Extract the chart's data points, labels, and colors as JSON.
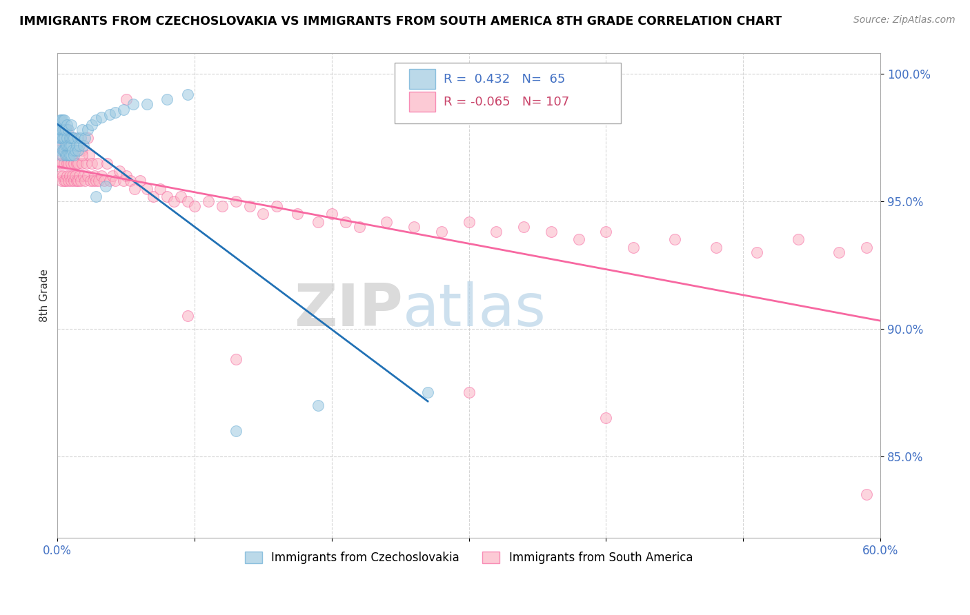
{
  "title": "IMMIGRANTS FROM CZECHOSLOVAKIA VS IMMIGRANTS FROM SOUTH AMERICA 8TH GRADE CORRELATION CHART",
  "source_text": "Source: ZipAtlas.com",
  "ylabel": "8th Grade",
  "xlim": [
    0.0,
    0.6
  ],
  "ylim": [
    0.818,
    1.008
  ],
  "y_ticks": [
    0.85,
    0.9,
    0.95,
    1.0
  ],
  "y_tick_labels": [
    "85.0%",
    "90.0%",
    "95.0%",
    "100.0%"
  ],
  "r_blue": 0.432,
  "n_blue": 65,
  "r_pink": -0.065,
  "n_pink": 107,
  "blue_color": "#9ecae1",
  "pink_color": "#fbb4c4",
  "blue_edge_color": "#6baed6",
  "pink_edge_color": "#f768a1",
  "blue_line_color": "#2171b5",
  "pink_line_color": "#f768a1",
  "watermark_zip": "ZIP",
  "watermark_atlas": "atlas",
  "legend_label_blue": "Immigrants from Czechoslovakia",
  "legend_label_pink": "Immigrants from South America",
  "blue_scatter_x": [
    0.001,
    0.001,
    0.002,
    0.002,
    0.002,
    0.002,
    0.003,
    0.003,
    0.003,
    0.003,
    0.003,
    0.004,
    0.004,
    0.004,
    0.004,
    0.005,
    0.005,
    0.005,
    0.005,
    0.006,
    0.006,
    0.006,
    0.007,
    0.007,
    0.007,
    0.007,
    0.008,
    0.008,
    0.008,
    0.009,
    0.009,
    0.009,
    0.01,
    0.01,
    0.01,
    0.01,
    0.011,
    0.011,
    0.012,
    0.012,
    0.013,
    0.014,
    0.015,
    0.015,
    0.016,
    0.017,
    0.018,
    0.019,
    0.02,
    0.022,
    0.025,
    0.028,
    0.032,
    0.038,
    0.042,
    0.048,
    0.055,
    0.065,
    0.08,
    0.095,
    0.028,
    0.035,
    0.13,
    0.19,
    0.27
  ],
  "blue_scatter_y": [
    0.975,
    0.98,
    0.97,
    0.975,
    0.978,
    0.982,
    0.968,
    0.972,
    0.975,
    0.978,
    0.982,
    0.97,
    0.975,
    0.978,
    0.982,
    0.97,
    0.975,
    0.978,
    0.982,
    0.968,
    0.972,
    0.978,
    0.968,
    0.972,
    0.975,
    0.98,
    0.968,
    0.972,
    0.978,
    0.968,
    0.972,
    0.975,
    0.968,
    0.972,
    0.975,
    0.98,
    0.97,
    0.975,
    0.968,
    0.975,
    0.97,
    0.972,
    0.97,
    0.975,
    0.972,
    0.975,
    0.978,
    0.972,
    0.975,
    0.978,
    0.98,
    0.982,
    0.983,
    0.984,
    0.985,
    0.986,
    0.988,
    0.988,
    0.99,
    0.992,
    0.952,
    0.956,
    0.86,
    0.87,
    0.875
  ],
  "pink_scatter_x": [
    0.001,
    0.001,
    0.002,
    0.002,
    0.003,
    0.003,
    0.003,
    0.004,
    0.004,
    0.005,
    0.005,
    0.005,
    0.006,
    0.006,
    0.007,
    0.007,
    0.008,
    0.008,
    0.009,
    0.009,
    0.01,
    0.01,
    0.011,
    0.011,
    0.012,
    0.012,
    0.013,
    0.014,
    0.014,
    0.015,
    0.015,
    0.016,
    0.017,
    0.018,
    0.018,
    0.019,
    0.02,
    0.021,
    0.022,
    0.023,
    0.024,
    0.025,
    0.026,
    0.027,
    0.028,
    0.029,
    0.03,
    0.032,
    0.034,
    0.036,
    0.038,
    0.04,
    0.042,
    0.045,
    0.048,
    0.05,
    0.053,
    0.056,
    0.06,
    0.065,
    0.07,
    0.075,
    0.08,
    0.085,
    0.09,
    0.095,
    0.1,
    0.11,
    0.12,
    0.13,
    0.14,
    0.15,
    0.16,
    0.175,
    0.19,
    0.2,
    0.21,
    0.22,
    0.24,
    0.26,
    0.28,
    0.3,
    0.32,
    0.34,
    0.36,
    0.38,
    0.4,
    0.42,
    0.45,
    0.48,
    0.51,
    0.54,
    0.57,
    0.59,
    0.005,
    0.007,
    0.009,
    0.012,
    0.015,
    0.018,
    0.022,
    0.05,
    0.095,
    0.3,
    0.4,
    0.59,
    0.13
  ],
  "pink_scatter_y": [
    0.965,
    0.972,
    0.96,
    0.972,
    0.958,
    0.965,
    0.975,
    0.96,
    0.968,
    0.958,
    0.965,
    0.972,
    0.958,
    0.968,
    0.96,
    0.965,
    0.958,
    0.965,
    0.96,
    0.968,
    0.958,
    0.965,
    0.96,
    0.968,
    0.958,
    0.965,
    0.96,
    0.958,
    0.965,
    0.958,
    0.965,
    0.96,
    0.958,
    0.965,
    0.97,
    0.96,
    0.958,
    0.965,
    0.96,
    0.968,
    0.958,
    0.965,
    0.958,
    0.96,
    0.958,
    0.965,
    0.958,
    0.96,
    0.958,
    0.965,
    0.958,
    0.96,
    0.958,
    0.962,
    0.958,
    0.96,
    0.958,
    0.955,
    0.958,
    0.955,
    0.952,
    0.955,
    0.952,
    0.95,
    0.952,
    0.95,
    0.948,
    0.95,
    0.948,
    0.95,
    0.948,
    0.945,
    0.948,
    0.945,
    0.942,
    0.945,
    0.942,
    0.94,
    0.942,
    0.94,
    0.938,
    0.942,
    0.938,
    0.94,
    0.938,
    0.935,
    0.938,
    0.932,
    0.935,
    0.932,
    0.93,
    0.935,
    0.93,
    0.932,
    0.975,
    0.978,
    0.972,
    0.975,
    0.97,
    0.968,
    0.975,
    0.99,
    0.905,
    0.875,
    0.865,
    0.835,
    0.888
  ]
}
